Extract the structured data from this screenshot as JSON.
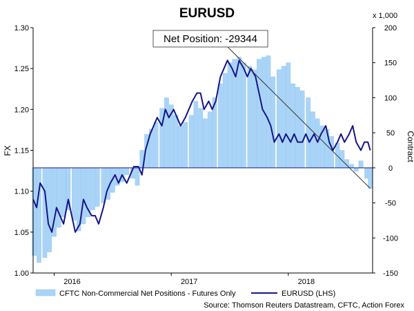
{
  "chart_data": {
    "type": "bar",
    "title": "EURUSD",
    "left_axis_label": "FX",
    "right_axis_label": "Contract",
    "right_axis_multiplier": "x 1,000",
    "left_axis": {
      "range": [
        1.0,
        1.3
      ],
      "ticks": [
        "1.00",
        "1.05",
        "1.10",
        "1.15",
        "1.20",
        "1.25",
        "1.30"
      ]
    },
    "right_axis": {
      "range": [
        -150,
        200
      ],
      "ticks": [
        "-150",
        "-100",
        "-50",
        "0",
        "50",
        "100",
        "150",
        "200"
      ]
    },
    "x_axis": {
      "range": [
        2015.82,
        2018.72
      ],
      "tick_labels": [
        {
          "label": "2016",
          "x": 2016.0
        },
        {
          "label": "2017",
          "x": 2017.0
        },
        {
          "label": "2018",
          "x": 2018.0
        }
      ]
    },
    "annotation": {
      "label": "Net Position: -29344",
      "target": {
        "x": 2018.7,
        "value": -29.344
      }
    },
    "legend": {
      "placement": "bottom",
      "entries": [
        {
          "label": "CFTC Non-Commercial Net Positions - Futures Only",
          "color": "#a9d4f7"
        },
        {
          "label": "EURUSD (LHS)",
          "color": "#14148c"
        }
      ]
    },
    "source": "Source: Thomson Reuters Datastream, CFTC, Action Forex",
    "series": [
      {
        "name": "CFTC Non-Commercial Net Positions - Futures Only",
        "kind": "bar",
        "axis": "right",
        "color": "#a9d4f7",
        "x": [
          2015.83,
          2015.87,
          2015.92,
          2015.96,
          2016.0,
          2016.04,
          2016.08,
          2016.12,
          2016.17,
          2016.21,
          2016.25,
          2016.29,
          2016.33,
          2016.37,
          2016.42,
          2016.46,
          2016.5,
          2016.54,
          2016.58,
          2016.62,
          2016.67,
          2016.71,
          2016.75,
          2016.79,
          2016.83,
          2016.87,
          2016.92,
          2016.96,
          2017.0,
          2017.04,
          2017.08,
          2017.12,
          2017.17,
          2017.21,
          2017.25,
          2017.29,
          2017.33,
          2017.37,
          2017.42,
          2017.46,
          2017.5,
          2017.54,
          2017.58,
          2017.62,
          2017.67,
          2017.71,
          2017.75,
          2017.79,
          2017.83,
          2017.87,
          2017.92,
          2017.96,
          2018.0,
          2018.04,
          2018.08,
          2018.12,
          2018.17,
          2018.21,
          2018.25,
          2018.29,
          2018.33,
          2018.37,
          2018.42,
          2018.46,
          2018.5,
          2018.54,
          2018.58,
          2018.62,
          2018.67,
          2018.7
        ],
        "values": [
          -125,
          -135,
          -128,
          -120,
          -98,
          -85,
          -70,
          -60,
          -75,
          -90,
          -80,
          -70,
          -60,
          -55,
          -50,
          -45,
          -35,
          -25,
          -20,
          -10,
          -15,
          -25,
          25,
          48,
          55,
          65,
          85,
          100,
          90,
          75,
          60,
          65,
          75,
          95,
          85,
          70,
          80,
          100,
          120,
          135,
          150,
          155,
          158,
          150,
          145,
          140,
          155,
          158,
          160,
          130,
          140,
          145,
          150,
          120,
          115,
          110,
          100,
          80,
          70,
          60,
          55,
          45,
          35,
          25,
          12,
          5,
          -5,
          10,
          -15,
          -29.344
        ]
      },
      {
        "name": "EURUSD (LHS)",
        "kind": "line",
        "axis": "left",
        "color": "#14148c",
        "x": [
          2015.82,
          2015.85,
          2015.88,
          2015.92,
          2015.95,
          2015.98,
          2016.02,
          2016.05,
          2016.08,
          2016.12,
          2016.15,
          2016.18,
          2016.22,
          2016.25,
          2016.28,
          2016.32,
          2016.35,
          2016.38,
          2016.42,
          2016.45,
          2016.48,
          2016.52,
          2016.55,
          2016.58,
          2016.62,
          2016.65,
          2016.68,
          2016.72,
          2016.75,
          2016.78,
          2016.82,
          2016.85,
          2016.88,
          2016.92,
          2016.95,
          2016.98,
          2017.02,
          2017.05,
          2017.08,
          2017.12,
          2017.15,
          2017.18,
          2017.22,
          2017.25,
          2017.28,
          2017.32,
          2017.35,
          2017.38,
          2017.42,
          2017.45,
          2017.48,
          2017.52,
          2017.55,
          2017.58,
          2017.62,
          2017.65,
          2017.68,
          2017.72,
          2017.75,
          2017.78,
          2017.82,
          2017.85,
          2017.88,
          2017.92,
          2017.95,
          2017.98,
          2018.02,
          2018.05,
          2018.08,
          2018.12,
          2018.15,
          2018.18,
          2018.22,
          2018.25,
          2018.28,
          2018.32,
          2018.35,
          2018.38,
          2018.42,
          2018.45,
          2018.48,
          2018.52,
          2018.55,
          2018.58,
          2018.62,
          2018.65,
          2018.68,
          2018.7
        ],
        "values": [
          1.09,
          1.08,
          1.11,
          1.1,
          1.06,
          1.05,
          1.08,
          1.07,
          1.06,
          1.09,
          1.07,
          1.05,
          1.06,
          1.09,
          1.08,
          1.07,
          1.07,
          1.06,
          1.08,
          1.1,
          1.11,
          1.12,
          1.11,
          1.12,
          1.11,
          1.12,
          1.13,
          1.13,
          1.12,
          1.15,
          1.17,
          1.18,
          1.19,
          1.18,
          1.2,
          1.19,
          1.2,
          1.19,
          1.18,
          1.19,
          1.2,
          1.21,
          1.22,
          1.22,
          1.2,
          1.21,
          1.2,
          1.21,
          1.24,
          1.25,
          1.26,
          1.25,
          1.24,
          1.26,
          1.25,
          1.24,
          1.25,
          1.24,
          1.22,
          1.2,
          1.19,
          1.18,
          1.16,
          1.17,
          1.16,
          1.17,
          1.16,
          1.17,
          1.16,
          1.16,
          1.17,
          1.16,
          1.17,
          1.16,
          1.17,
          1.18,
          1.16,
          1.15,
          1.16,
          1.17,
          1.16,
          1.17,
          1.18,
          1.16,
          1.15,
          1.16,
          1.16,
          1.15
        ]
      }
    ]
  }
}
